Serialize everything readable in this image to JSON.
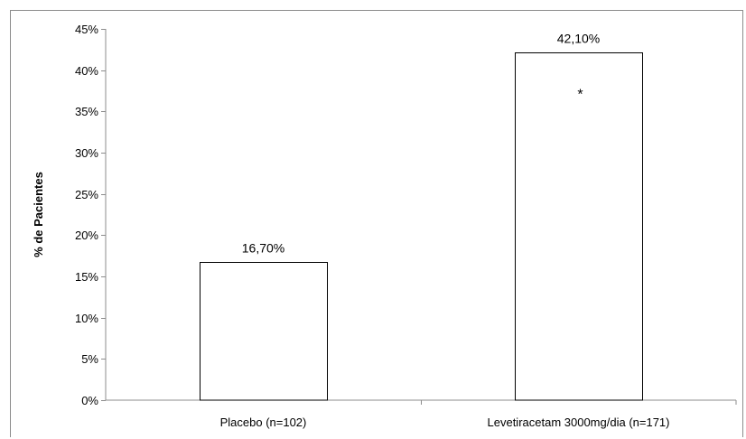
{
  "chart_data": {
    "type": "bar",
    "categories": [
      "Placebo (n=102)",
      "Levetiracetam 3000mg/dia (n=171)"
    ],
    "values": [
      16.7,
      42.1
    ],
    "data_labels": [
      "16,70%",
      "42,10%"
    ],
    "ylabel": "% de Pacientes",
    "xlabel": "",
    "ylim": [
      0,
      45
    ],
    "y_ticks": [
      0,
      5,
      10,
      15,
      20,
      25,
      30,
      35,
      40,
      45
    ],
    "y_tick_labels": [
      "0%",
      "5%",
      "10%",
      "15%",
      "20%",
      "25%",
      "30%",
      "35%",
      "40%",
      "45%"
    ],
    "annotations": [
      {
        "category": "Levetiracetam 3000mg/dia (n=171)",
        "text": "*"
      }
    ],
    "grid": false,
    "legend": "none",
    "bar_fill": "#ffffff",
    "bar_stroke": "#000000",
    "axis_color": "#8c8c8c"
  }
}
